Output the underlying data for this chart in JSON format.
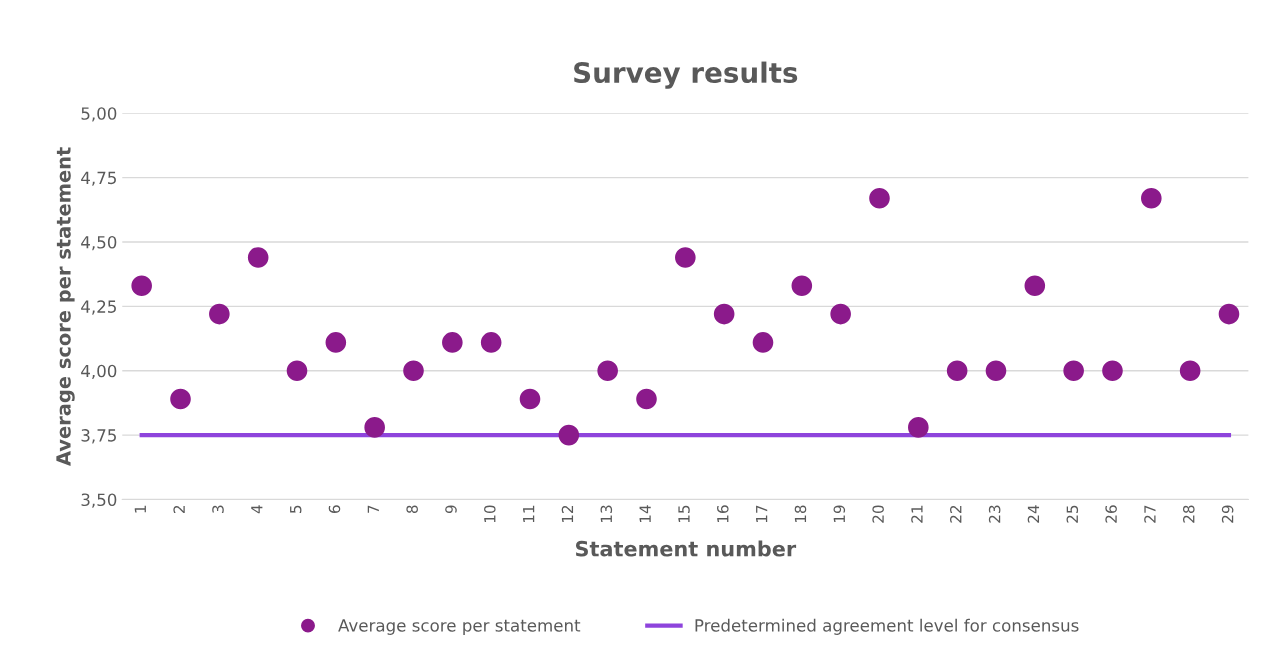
{
  "chart_data": {
    "type": "scatter",
    "title": "Survey results",
    "xlabel": "Statement number",
    "ylabel": "Average score per statement",
    "categories": [
      "1",
      "2",
      "3",
      "4",
      "5",
      "6",
      "7",
      "8",
      "9",
      "10",
      "11",
      "12",
      "13",
      "14",
      "15",
      "16",
      "17",
      "18",
      "19",
      "20",
      "21",
      "22",
      "23",
      "24",
      "25",
      "26",
      "27",
      "28",
      "29"
    ],
    "series": [
      {
        "name": "Average score per statement",
        "color": "#8b1a8b",
        "marker": "circle",
        "values": [
          4.33,
          3.89,
          4.22,
          4.44,
          4.0,
          4.11,
          3.78,
          4.0,
          4.11,
          4.11,
          3.89,
          3.75,
          4.0,
          3.89,
          4.44,
          4.22,
          4.11,
          4.33,
          4.22,
          4.67,
          3.78,
          4.0,
          4.0,
          4.33,
          4.0,
          4.0,
          4.67,
          4.0,
          4.22
        ]
      },
      {
        "name": "Predetermined agreement level for consensus",
        "type": "line",
        "color": "#8e44dc",
        "line_style": "solid",
        "values": [
          3.75,
          3.75,
          3.75,
          3.75,
          3.75,
          3.75,
          3.75,
          3.75,
          3.75,
          3.75,
          3.75,
          3.75,
          3.75,
          3.75,
          3.75,
          3.75,
          3.75,
          3.75,
          3.75,
          3.75,
          3.75,
          3.75,
          3.75,
          3.75,
          3.75,
          3.75,
          3.75,
          3.75,
          3.75
        ]
      }
    ],
    "ylim": [
      3.5,
      5.0
    ],
    "yticks": [
      {
        "value": 3.5,
        "label": "3,50"
      },
      {
        "value": 3.75,
        "label": "3,75"
      },
      {
        "value": 4.0,
        "label": "4,00"
      },
      {
        "value": 4.25,
        "label": "4,25"
      },
      {
        "value": 4.5,
        "label": "4,50"
      },
      {
        "value": 4.75,
        "label": "4,75"
      },
      {
        "value": 5.0,
        "label": "5,00"
      }
    ],
    "grid": "y",
    "legend": "bottom"
  }
}
